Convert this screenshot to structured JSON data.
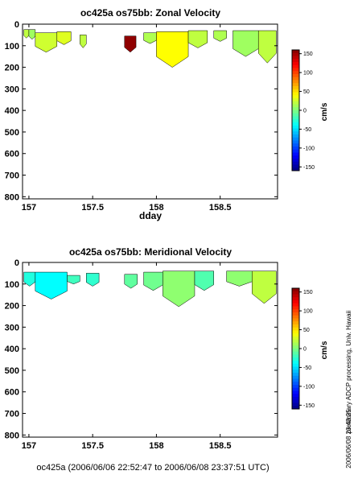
{
  "chart_data": [
    {
      "type": "heatmap",
      "title": "oc425a os75bb: Zonal Velocity",
      "xlabel": "dday",
      "ylabel": "",
      "x_ticks": [
        "157",
        "157.5",
        "158",
        "158.5"
      ],
      "y_ticks": [
        "0",
        "100",
        "200",
        "300",
        "400",
        "500",
        "600",
        "700",
        "800"
      ],
      "xlim": [
        156.95,
        158.95
      ],
      "ylim": [
        810,
        0
      ],
      "colorbar": {
        "label": "cm/s",
        "range": [
          -160,
          160
        ],
        "ticks": [
          "150",
          "100",
          "50",
          "0",
          "-50",
          "-100",
          "-150"
        ]
      },
      "colormap": "jet",
      "cells": [
        [
          156.96,
          157.0,
          25,
          65,
          20
        ],
        [
          157.0,
          157.05,
          25,
          70,
          10
        ],
        [
          157.05,
          157.22,
          40,
          130,
          25
        ],
        [
          157.22,
          157.33,
          35,
          95,
          30
        ],
        [
          157.4,
          157.45,
          50,
          110,
          20
        ],
        [
          157.75,
          157.84,
          55,
          130,
          155
        ],
        [
          157.9,
          158.0,
          40,
          90,
          15
        ],
        [
          158.0,
          158.25,
          35,
          200,
          40
        ],
        [
          158.25,
          158.4,
          30,
          110,
          20
        ],
        [
          158.45,
          158.55,
          30,
          80,
          15
        ],
        [
          158.6,
          158.8,
          30,
          150,
          10
        ],
        [
          158.8,
          158.94,
          30,
          180,
          20
        ]
      ]
    },
    {
      "type": "heatmap",
      "title": "oc425a os75bb: Meridional Velocity",
      "xlabel": "",
      "ylabel": "",
      "x_ticks": [
        "157",
        "157.5",
        "158",
        "158.5"
      ],
      "y_ticks": [
        "0",
        "100",
        "200",
        "300",
        "400",
        "500",
        "600",
        "700",
        "800"
      ],
      "xlim": [
        156.95,
        158.95
      ],
      "ylim": [
        810,
        0
      ],
      "colorbar": {
        "label": "cm/s",
        "range": [
          -160,
          160
        ],
        "ticks": [
          "150",
          "100",
          "50",
          "0",
          "-50",
          "-100",
          "-150"
        ]
      },
      "colormap": "jet",
      "cells": [
        [
          156.96,
          157.05,
          45,
          110,
          -30
        ],
        [
          157.05,
          157.3,
          45,
          170,
          -40
        ],
        [
          157.3,
          157.4,
          60,
          100,
          -20
        ],
        [
          157.45,
          157.55,
          50,
          110,
          -25
        ],
        [
          157.75,
          157.85,
          55,
          120,
          -10
        ],
        [
          157.9,
          158.05,
          45,
          130,
          -5
        ],
        [
          158.05,
          158.3,
          40,
          205,
          5
        ],
        [
          158.3,
          158.45,
          40,
          130,
          -15
        ],
        [
          158.55,
          158.75,
          40,
          110,
          5
        ],
        [
          158.75,
          158.94,
          40,
          190,
          20
        ]
      ]
    }
  ],
  "side_note": "preliminary ADCP processing,  Univ. Hawaii",
  "side_date": "2006/06/08 23:43:25",
  "footer": "oc425a (2006/06/06 22:52:47 to 2006/06/08 23:37:51 UTC)"
}
